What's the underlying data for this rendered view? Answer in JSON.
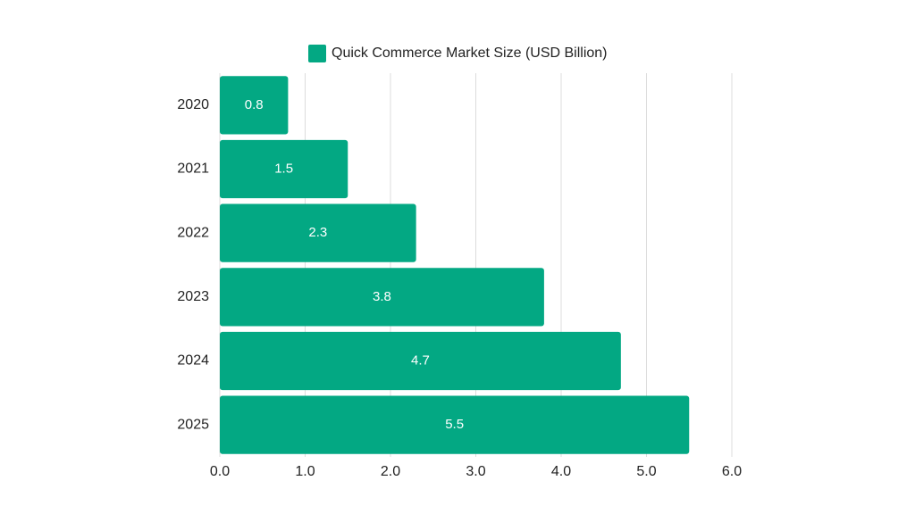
{
  "chart_data": {
    "type": "barh",
    "categories": [
      "2020",
      "2021",
      "2022",
      "2023",
      "2024",
      "2025"
    ],
    "series": [
      {
        "name": "Quick Commerce Market Size (USD Billion)",
        "color": "#03a883",
        "values": [
          0.8,
          1.5,
          2.3,
          3.8,
          4.7,
          5.5
        ]
      }
    ],
    "xlim": [
      0,
      6
    ],
    "xticks": [
      {
        "value": 0,
        "label": "0.0"
      },
      {
        "value": 1,
        "label": "1.0"
      },
      {
        "value": 2,
        "label": "2.0"
      },
      {
        "value": 3,
        "label": "3.0"
      },
      {
        "value": 4,
        "label": "4.0"
      },
      {
        "value": 5,
        "label": "5.0"
      },
      {
        "value": 6,
        "label": "6.0"
      }
    ],
    "grid": true,
    "legend": "top"
  }
}
